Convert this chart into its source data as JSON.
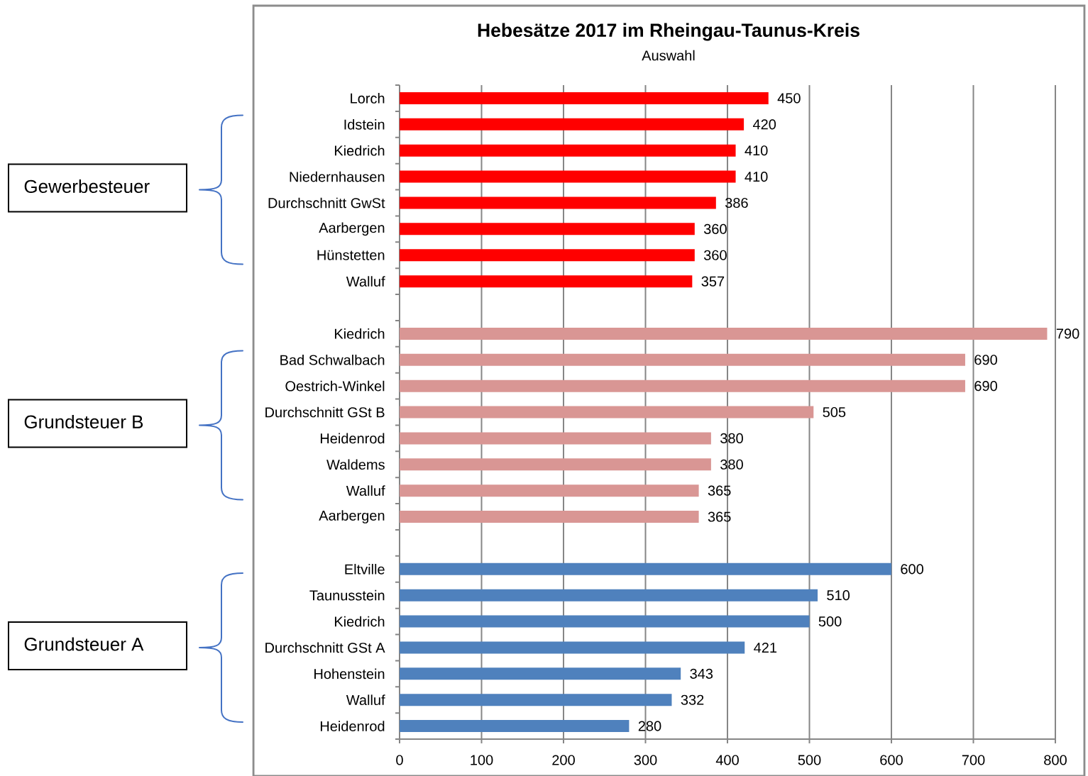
{
  "chart_data": {
    "type": "bar",
    "orientation": "horizontal",
    "title": "Hebesätze 2017 im Rheingau-Taunus-Kreis",
    "subtitle": "Auswahl",
    "categories": [
      "Lorch",
      "Idstein",
      "Kiedrich",
      "Niedernhausen",
      "Durchschnitt GwSt",
      "Aarbergen",
      "Hünstetten",
      "Walluf",
      null,
      "Kiedrich",
      "Bad Schwalbach",
      "Oestrich-Winkel",
      "Durchschnitt GSt B",
      "Heidenrod",
      "Waldems",
      "Walluf",
      "Aarbergen",
      null,
      "Eltville",
      "Taunusstein",
      "Kiedrich",
      "Durchschnitt GSt A",
      "Hohenstein",
      "Walluf",
      "Heidenrod"
    ],
    "series": [
      {
        "color": "#ff0000",
        "values": [
          450,
          420,
          410,
          410,
          386,
          360,
          360,
          357,
          null,
          null,
          null,
          null,
          null,
          null,
          null,
          null,
          null,
          null,
          null,
          null,
          null,
          null,
          null,
          null,
          null
        ]
      },
      {
        "color": "#d99694",
        "values": [
          null,
          null,
          null,
          null,
          null,
          null,
          null,
          null,
          null,
          790,
          690,
          690,
          505,
          380,
          380,
          365,
          365,
          null,
          null,
          null,
          null,
          null,
          null,
          null,
          null
        ]
      },
      {
        "color": "#4f81bd",
        "values": [
          null,
          null,
          null,
          null,
          null,
          null,
          null,
          null,
          null,
          null,
          null,
          null,
          null,
          null,
          null,
          null,
          null,
          null,
          600,
          510,
          500,
          421,
          343,
          332,
          280
        ]
      }
    ],
    "xlim": [
      0,
      800
    ],
    "xticks": [
      0,
      100,
      200,
      300,
      400,
      500,
      600,
      700,
      800
    ],
    "grid": "x",
    "data_labels": true,
    "annotations": [
      "Gewerbesteuer",
      "Grundsteuer B",
      "Grundsteuer A"
    ]
  }
}
